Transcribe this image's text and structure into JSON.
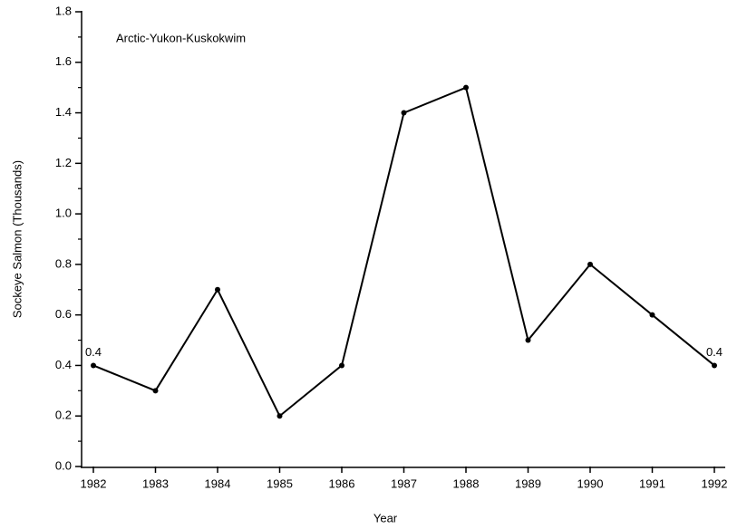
{
  "chart_data": {
    "type": "line",
    "title": "Arctic-Yukon-Kuskokwim",
    "x_label": "Year",
    "y_label": "Sockeye Salmon (Thousands)",
    "categories": [
      "1982",
      "1983",
      "1984",
      "1985",
      "1986",
      "1987",
      "1988",
      "1989",
      "1990",
      "1991",
      "1992"
    ],
    "series": [
      {
        "name": "Arctic-Yukon-Kuskokwim",
        "color": "#000000",
        "values": [
          0.4,
          0.3,
          0.7,
          0.2,
          0.4,
          1.4,
          1.5,
          0.5,
          0.8,
          0.6,
          0.4
        ],
        "value_labels": [
          "0.4",
          null,
          null,
          null,
          null,
          null,
          null,
          null,
          null,
          null,
          "0.4"
        ]
      }
    ],
    "ylim": [
      0,
      1.8
    ],
    "yticks": [
      {
        "value": 0,
        "label": "0.0"
      },
      0.2,
      0.4,
      0.6,
      0.8,
      {
        "value": 1,
        "label": "1.0"
      },
      1.2,
      1.4,
      1.6,
      1.8
    ],
    "yminorticks": [
      0.1,
      0.3,
      0.5,
      0.7,
      0.9,
      1.1,
      1.3,
      1.5,
      1.7
    ],
    "grid": false
  }
}
